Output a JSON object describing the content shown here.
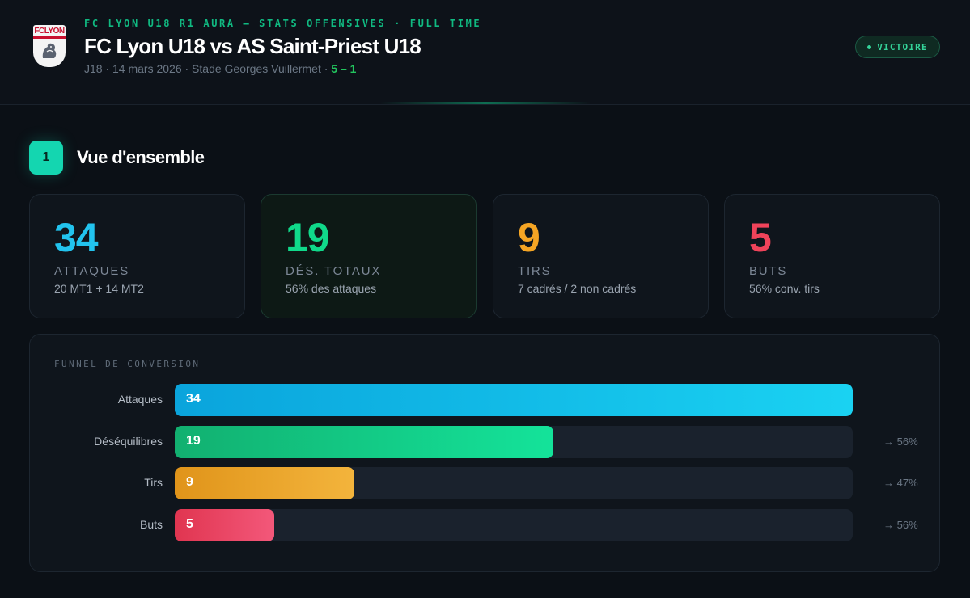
{
  "header": {
    "kicker": "FC LYON U18 R1 AURA — STATS OFFENSIVES · FULL TIME",
    "title": "FC Lyon U18 vs AS Saint-Priest U18",
    "meta_text": "J18 · 14 mars 2026 · Stade Georges Vuillermet · ",
    "score": "5 – 1",
    "badge": "VICTOIRE",
    "logo_text": "FCLYON"
  },
  "section": {
    "number": "1",
    "title": "Vue d'ensemble"
  },
  "cards": [
    {
      "value": "34",
      "label": "ATTAQUES",
      "sub": "20 MT1 + 14 MT2",
      "color": "#22c3ee"
    },
    {
      "value": "19",
      "label": "DÉS. TOTAUX",
      "sub": "56% des attaques",
      "color": "#10d98a"
    },
    {
      "value": "9",
      "label": "TIRS",
      "sub": "7 cadrés / 2 non cadrés",
      "color": "#f5a524"
    },
    {
      "value": "5",
      "label": "BUTS",
      "sub": "56% conv. tirs",
      "color": "#f0435a"
    }
  ],
  "funnel": {
    "title": "FUNNEL DE CONVERSION",
    "max": 34,
    "rows": [
      {
        "label": "Attaques",
        "value": 34,
        "value_text": "34",
        "pct": "",
        "gradient": [
          "#0aa4dc",
          "#1ad2f2"
        ]
      },
      {
        "label": "Déséquilibres",
        "value": 19,
        "value_text": "19",
        "pct": "→ 56%",
        "gradient": [
          "#12b070",
          "#14e39a"
        ]
      },
      {
        "label": "Tirs",
        "value": 9,
        "value_text": "9",
        "pct": "→ 47%",
        "gradient": [
          "#e0941a",
          "#f3b43c"
        ]
      },
      {
        "label": "Buts",
        "value": 5,
        "value_text": "5",
        "pct": "→ 56%",
        "gradient": [
          "#e03550",
          "#f3587a"
        ]
      }
    ]
  }
}
